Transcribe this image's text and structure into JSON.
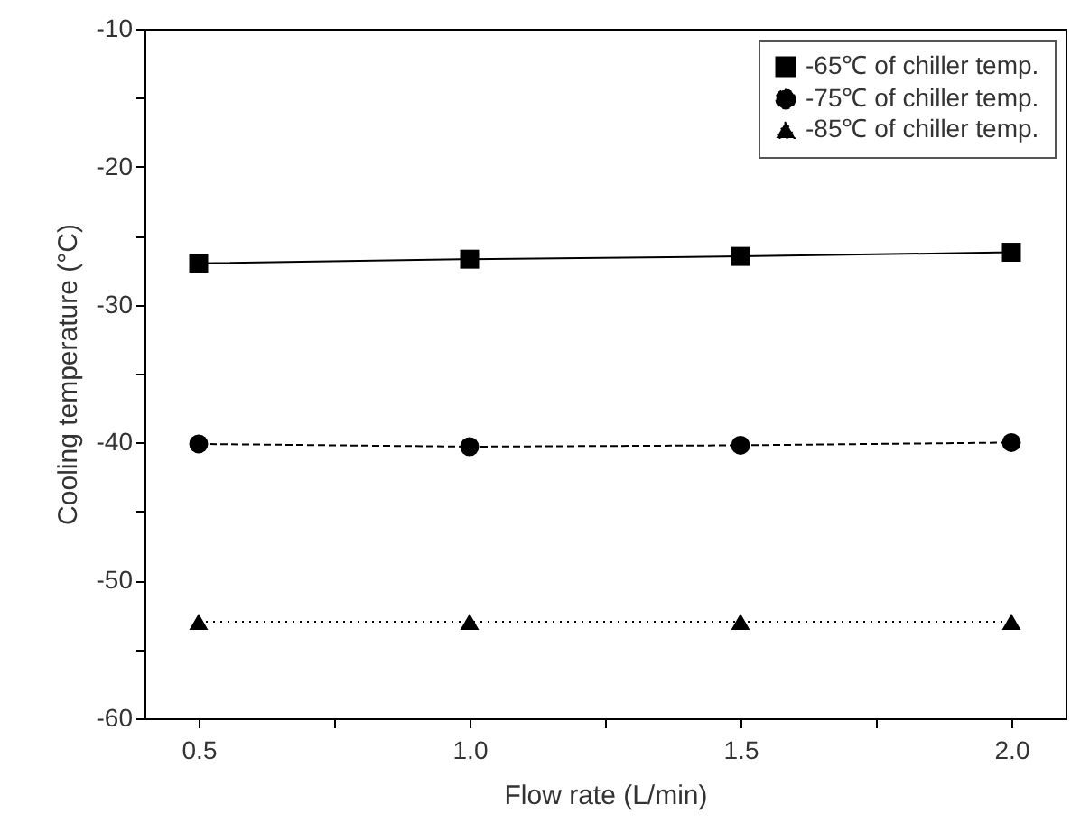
{
  "chart_data": {
    "type": "line",
    "xlabel": "Flow rate (L/min)",
    "ylabel": "Cooling temperature (°C)",
    "x": [
      0.5,
      1.0,
      1.5,
      2.0
    ],
    "series": [
      {
        "name": "-65℃ of chiller temp.",
        "color": "#000000",
        "marker": "square",
        "line_style": "solid",
        "values": [
          -27.0,
          -26.7,
          -26.5,
          -26.2
        ]
      },
      {
        "name": "-75℃ of chiller temp.",
        "color": "#000000",
        "marker": "circle",
        "line_style": "dashed",
        "values": [
          -40.1,
          -40.3,
          -40.2,
          -40.0
        ]
      },
      {
        "name": "-85℃ of chiller temp.",
        "color": "#000000",
        "marker": "triangle",
        "line_style": "dotted",
        "values": [
          -53.0,
          -53.0,
          -53.0,
          -53.0
        ]
      }
    ],
    "xlim": [
      0.4,
      2.1
    ],
    "xticks": [
      {
        "value": 0.5,
        "label": "0.5"
      },
      {
        "value": 0.75,
        "label": null
      },
      {
        "value": 1.0,
        "label": "1.0"
      },
      {
        "value": 1.25,
        "label": null
      },
      {
        "value": 1.5,
        "label": "1.5"
      },
      {
        "value": 1.75,
        "label": null
      },
      {
        "value": 2.0,
        "label": "2.0"
      }
    ],
    "ylim": [
      -60,
      -10
    ],
    "yticks": [
      -60,
      {
        "value": -55,
        "label": null
      },
      -50,
      {
        "value": -45,
        "label": null
      },
      -40,
      {
        "value": -35,
        "label": null
      },
      -30,
      {
        "value": -25,
        "label": null
      },
      -20,
      {
        "value": -15,
        "label": null
      },
      -10
    ],
    "legend": "top right",
    "grid": false
  }
}
